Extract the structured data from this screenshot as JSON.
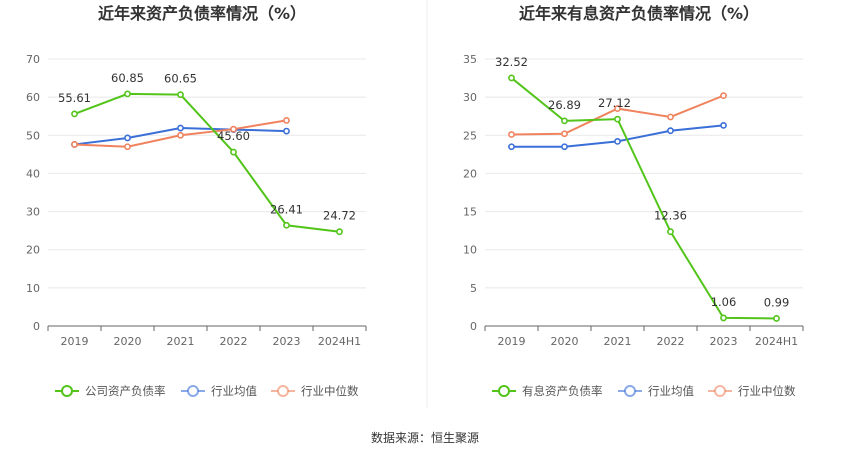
{
  "footer": {
    "source": "数据来源：恒生聚源"
  },
  "colors": {
    "company": "#52c41a",
    "avg": "#3a6fd8",
    "median": "#f0835e",
    "grid": "#e8e8e8",
    "axis": "#666666"
  },
  "chart_data": [
    {
      "type": "line",
      "title": "近年来资产负债率情况（%）",
      "categories": [
        "2019",
        "2020",
        "2021",
        "2022",
        "2023",
        "2024H1"
      ],
      "ylim": [
        0,
        70
      ],
      "yticks": [
        0,
        10,
        20,
        30,
        40,
        50,
        60,
        70
      ],
      "grid": true,
      "legend_position": "bottom",
      "series": [
        {
          "name": "公司资产负债率",
          "key": "company",
          "values": [
            55.61,
            60.85,
            60.65,
            45.6,
            26.41,
            24.72
          ],
          "labels": [
            "55.61",
            "60.85",
            "60.65",
            "45.60",
            "26.41",
            "24.72"
          ]
        },
        {
          "name": "行业均值",
          "key": "avg",
          "values": [
            47.6,
            49.3,
            51.9,
            51.5,
            51.1,
            null
          ]
        },
        {
          "name": "行业中位数",
          "key": "median",
          "values": [
            47.6,
            47.0,
            50.0,
            51.6,
            53.9,
            null
          ]
        }
      ]
    },
    {
      "type": "line",
      "title": "近年来有息资产负债率情况（%）",
      "categories": [
        "2019",
        "2020",
        "2021",
        "2022",
        "2023",
        "2024H1"
      ],
      "ylim": [
        0,
        35
      ],
      "yticks": [
        0,
        5,
        10,
        15,
        20,
        25,
        30,
        35
      ],
      "grid": true,
      "legend_position": "bottom",
      "series": [
        {
          "name": "有息资产负债率",
          "key": "company",
          "values": [
            32.52,
            26.89,
            27.12,
            12.36,
            1.06,
            0.99
          ],
          "labels": [
            "32.52",
            "26.89",
            "27.12",
            "12.36",
            "1.06",
            "0.99"
          ]
        },
        {
          "name": "行业均值",
          "key": "avg",
          "values": [
            23.5,
            23.5,
            24.2,
            25.6,
            26.3,
            null
          ]
        },
        {
          "name": "行业中位数",
          "key": "median",
          "values": [
            25.1,
            25.2,
            28.5,
            27.4,
            30.2,
            null
          ]
        }
      ]
    }
  ]
}
